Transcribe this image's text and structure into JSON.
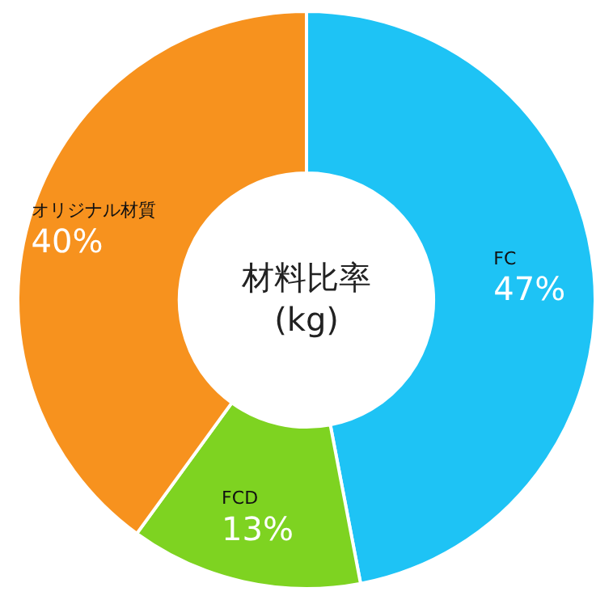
{
  "chart_data": {
    "type": "donut",
    "title": "材料比率",
    "subtitle": "(kg)",
    "categories": [
      "FC",
      "FCD",
      "オリジナル材質"
    ],
    "values": [
      47,
      13,
      40
    ],
    "value_labels": [
      "47%",
      "13%",
      "40%"
    ],
    "colors": [
      "#1ec3f5",
      "#7ed321",
      "#f7921e"
    ],
    "legend": false
  }
}
